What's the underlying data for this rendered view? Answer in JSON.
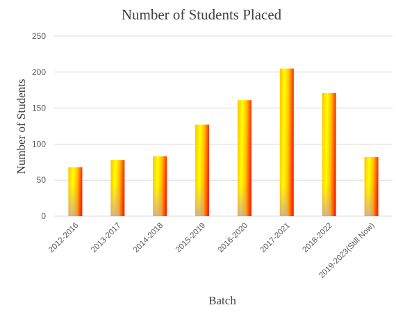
{
  "chart_data": {
    "type": "bar",
    "title": "Number of Students Placed",
    "xlabel": "Batch",
    "ylabel": "Number of Students",
    "categories": [
      "2012-2016",
      "2013-2017",
      "2014-2018",
      "2015-2019",
      "2016-2020",
      "2017-2021",
      "2018-2022",
      "2019-2023(Still Now)"
    ],
    "values": [
      68,
      78,
      83,
      127,
      161,
      205,
      171,
      82
    ],
    "ylim": [
      0,
      250
    ],
    "yticks": [
      0,
      50,
      100,
      150,
      200,
      250
    ],
    "grid": true,
    "legend": "none",
    "colors": {
      "bar_light": "#ffff00",
      "bar_mid": "#ffc000",
      "bar_dark": "#ff2a00",
      "bar_shadow": "#d9a0a0",
      "grid": "#d9d9d9",
      "text": "#595959"
    }
  }
}
